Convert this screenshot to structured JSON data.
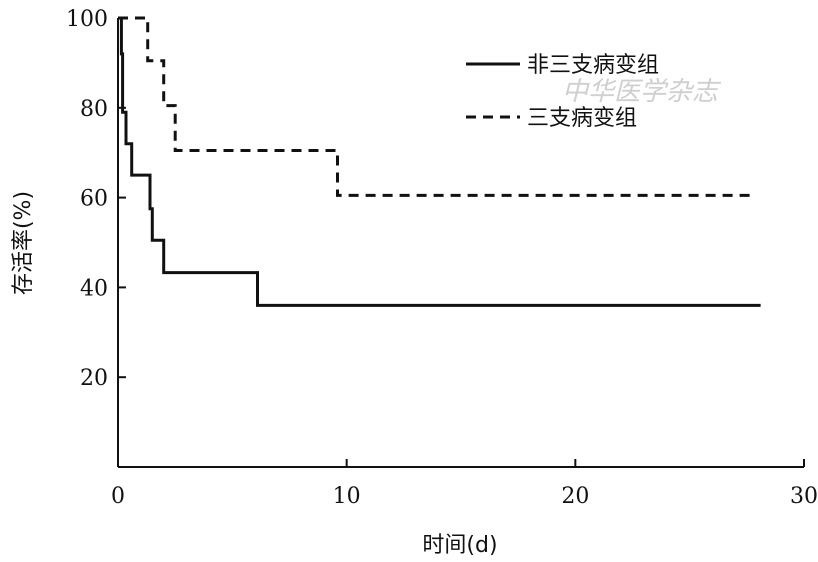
{
  "chart_data": {
    "type": "line",
    "step": true,
    "xlabel": "时间(d)",
    "ylabel": "存活率(%)",
    "xlim": [
      0,
      30
    ],
    "ylim": [
      0,
      100
    ],
    "xticks": [
      0,
      10,
      20,
      30
    ],
    "yticks": [
      20,
      40,
      60,
      80,
      100
    ],
    "grid": false,
    "legend_position": "top-right",
    "series": [
      {
        "name": "非三支病变组",
        "style": "solid",
        "color": "#111111",
        "points": [
          [
            0,
            100
          ],
          [
            0.15,
            100
          ],
          [
            0.15,
            92
          ],
          [
            0.2,
            92
          ],
          [
            0.2,
            79
          ],
          [
            0.35,
            79
          ],
          [
            0.35,
            72
          ],
          [
            0.6,
            72
          ],
          [
            0.6,
            65
          ],
          [
            1.4,
            65
          ],
          [
            1.4,
            57.5
          ],
          [
            1.5,
            57.5
          ],
          [
            1.5,
            50.5
          ],
          [
            2.0,
            50.5
          ],
          [
            2.0,
            43.3
          ],
          [
            6.1,
            43.3
          ],
          [
            6.1,
            36
          ],
          [
            28.1,
            36
          ]
        ]
      },
      {
        "name": "三支病变组",
        "style": "dashed",
        "color": "#111111",
        "points": [
          [
            0,
            100
          ],
          [
            1.3,
            100
          ],
          [
            1.3,
            90.5
          ],
          [
            2.0,
            90.5
          ],
          [
            2.0,
            80.5
          ],
          [
            2.5,
            80.5
          ],
          [
            2.5,
            70.5
          ],
          [
            9.6,
            70.5
          ],
          [
            9.6,
            60.5
          ],
          [
            27.7,
            60.5
          ]
        ]
      }
    ]
  },
  "watermark": "中华医学杂志"
}
